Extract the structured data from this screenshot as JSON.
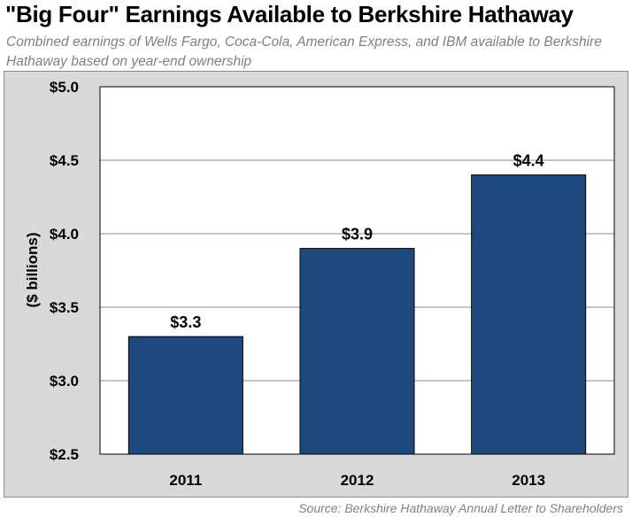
{
  "title": "\"Big Four\" Earnings Available to Berkshire Hathaway",
  "subtitle": "Combined earnings of Wells Fargo, Coca-Cola, American Express, and IBM available to Berkshire Hathaway based on year-end ownership",
  "source": "Source:  Berkshire Hathaway Annual Letter to Shareholders",
  "chart_data": {
    "type": "bar",
    "categories": [
      "2011",
      "2012",
      "2013"
    ],
    "values": [
      3.3,
      3.9,
      4.4
    ],
    "data_labels": [
      "$3.3",
      "$3.9",
      "$4.4"
    ],
    "title": "\"Big Four\" Earnings Available to Berkshire Hathaway",
    "xlabel": "",
    "ylabel": "($ billions)",
    "ylim": [
      2.5,
      5.0
    ],
    "yticks": [
      2.5,
      3.0,
      3.5,
      4.0,
      4.5,
      5.0
    ],
    "ytick_labels": [
      "$2.5",
      "$3.0",
      "$3.5",
      "$4.0",
      "$4.5",
      "$5.0"
    ],
    "grid": true,
    "bar_color": "#1f497d",
    "plot_background": "#ffffff",
    "chart_background": "#d9d9d9"
  }
}
